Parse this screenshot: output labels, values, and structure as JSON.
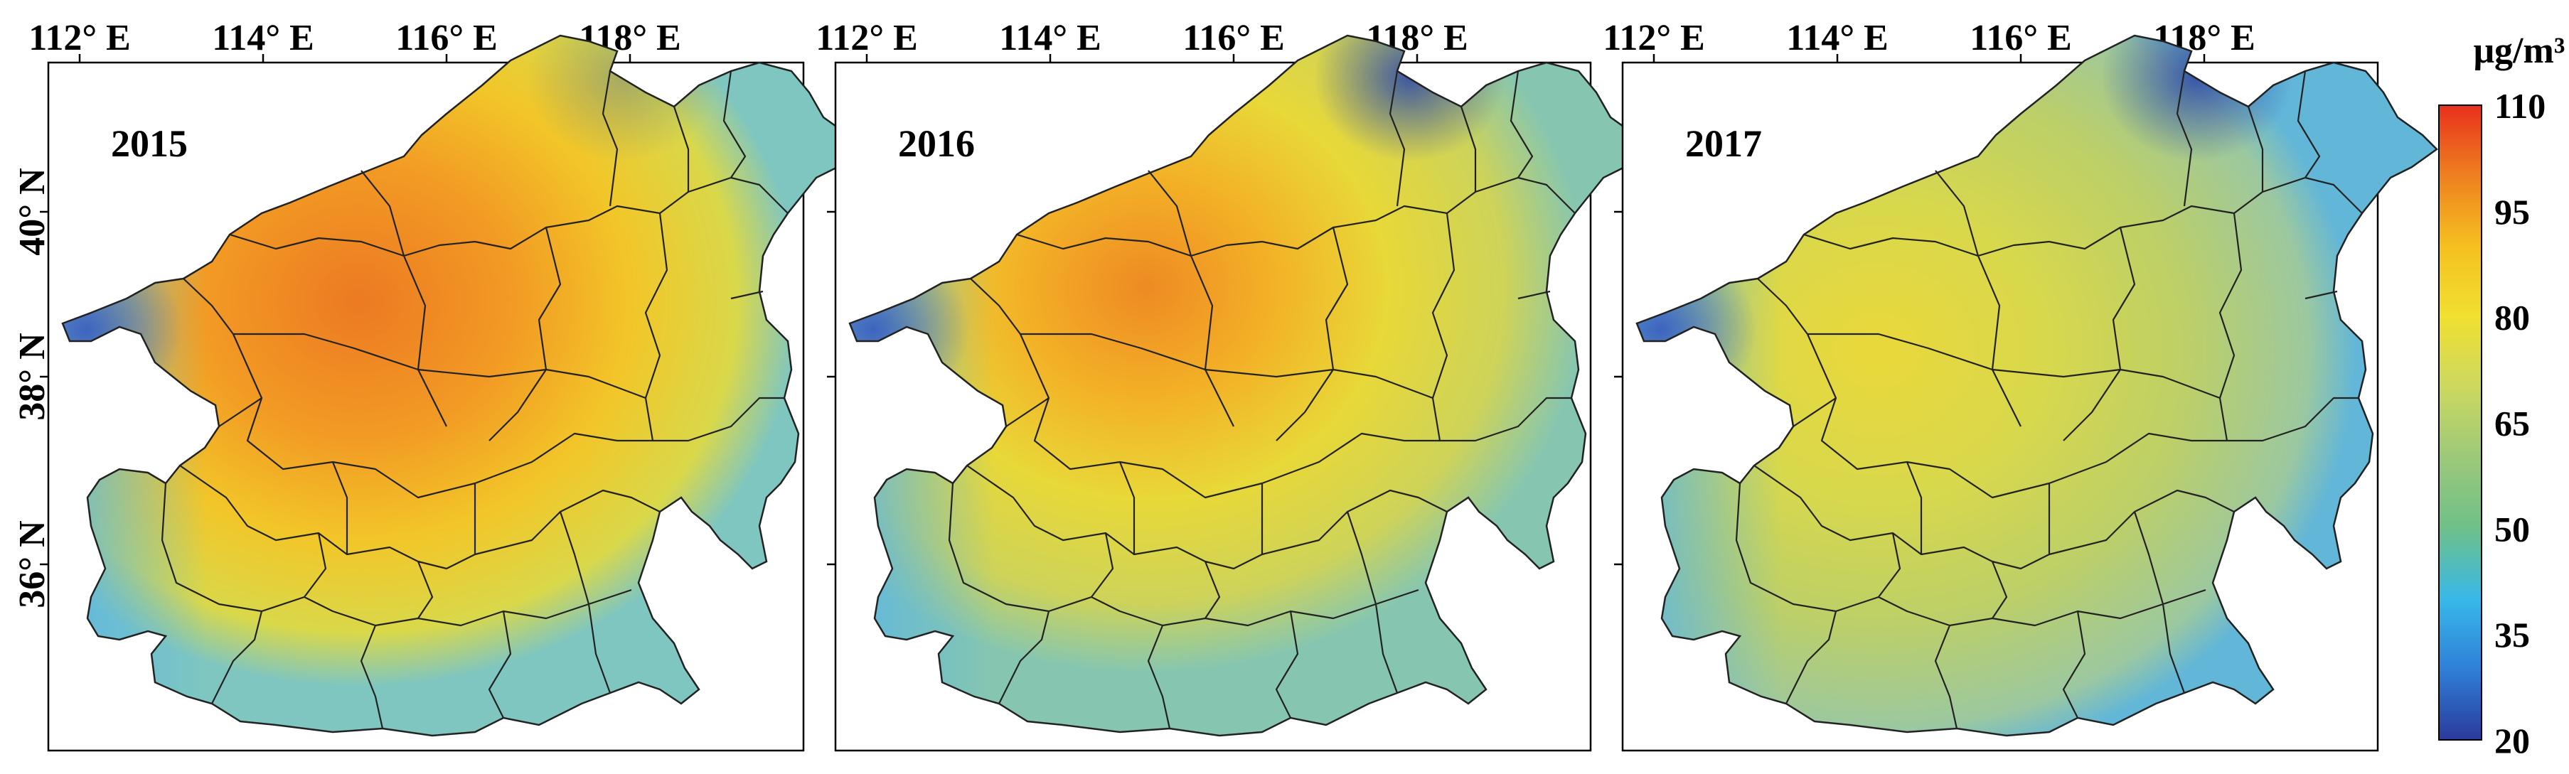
{
  "figure": {
    "longitude_ticks": [
      "112° E",
      "114° E",
      "116° E",
      "118° E"
    ],
    "latitude_ticks": [
      "40° N",
      "38° N",
      "36° N"
    ],
    "panels": [
      {
        "year": "2015",
        "region_max_level": 96,
        "region_min_level": 30
      },
      {
        "year": "2016",
        "region_max_level": 90,
        "region_min_level": 28
      },
      {
        "year": "2017",
        "region_max_level": 80,
        "region_min_level": 22
      }
    ]
  },
  "colorbar": {
    "unit": "μg/m³",
    "ticks": [
      "110",
      "95",
      "80",
      "65",
      "50",
      "35",
      "20"
    ],
    "min": 20,
    "max": 110,
    "colors": [
      "#2b3a9c",
      "#2f7fd8",
      "#38b8e8",
      "#6fc08a",
      "#9cc87a",
      "#ccd860",
      "#f0e030",
      "#f5c020",
      "#ee8020",
      "#e8301c"
    ]
  }
}
